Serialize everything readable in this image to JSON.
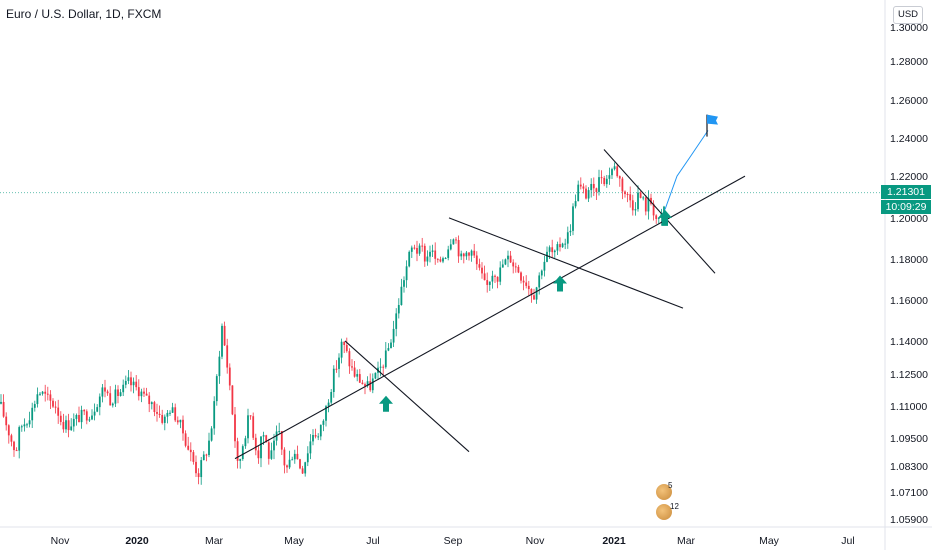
{
  "header": {
    "title": "Euro / U.S. Dollar, 1D, FXCM",
    "currency": "USD"
  },
  "price_tags": {
    "last_price": "1.21301",
    "countdown": "10:09:29"
  },
  "events": {
    "badge_top": "5",
    "badge_bottom": "12"
  },
  "colors": {
    "up": "#089981",
    "down": "#f23645",
    "projection": "#2196f3",
    "flag": "#2196f3",
    "lines": "#131722",
    "price_line": "#089981"
  },
  "chart_data": {
    "type": "candlestick",
    "symbol": "EURUSD",
    "timeframe": "1D",
    "x_axis_labels": [
      "Nov",
      "2020",
      "Mar",
      "May",
      "Jul",
      "Sep",
      "Nov",
      "2021",
      "Mar",
      "May",
      "Jul"
    ],
    "y_axis_labels": [
      "1.30000",
      "1.28000",
      "1.26000",
      "1.24000",
      "1.22000",
      "1.20000",
      "1.18000",
      "1.16000",
      "1.14000",
      "1.12500",
      "1.11000",
      "1.09500",
      "1.08300",
      "1.07100",
      "1.05900"
    ],
    "y_range": [
      1.059,
      1.3
    ],
    "last_price": 1.21301,
    "price_path": [
      [
        0,
        1.112
      ],
      [
        6,
        1.103
      ],
      [
        12,
        1.094
      ],
      [
        16,
        1.09
      ],
      [
        20,
        1.101
      ],
      [
        26,
        1.104
      ],
      [
        32,
        1.109
      ],
      [
        38,
        1.118
      ],
      [
        44,
        1.116
      ],
      [
        50,
        1.113
      ],
      [
        56,
        1.111
      ],
      [
        62,
        1.103
      ],
      [
        68,
        1.102
      ],
      [
        74,
        1.104
      ],
      [
        80,
        1.106
      ],
      [
        86,
        1.107
      ],
      [
        92,
        1.108
      ],
      [
        98,
        1.114
      ],
      [
        104,
        1.12
      ],
      [
        110,
        1.114
      ],
      [
        116,
        1.116
      ],
      [
        122,
        1.118
      ],
      [
        128,
        1.122
      ],
      [
        134,
        1.12
      ],
      [
        140,
        1.118
      ],
      [
        146,
        1.114
      ],
      [
        152,
        1.112
      ],
      [
        158,
        1.108
      ],
      [
        164,
        1.104
      ],
      [
        170,
        1.11
      ],
      [
        176,
        1.106
      ],
      [
        182,
        1.1
      ],
      [
        188,
        1.092
      ],
      [
        194,
        1.085
      ],
      [
        198,
        1.08
      ],
      [
        202,
        1.085
      ],
      [
        206,
        1.09
      ],
      [
        210,
        1.096
      ],
      [
        214,
        1.11
      ],
      [
        218,
        1.13
      ],
      [
        222,
        1.148
      ],
      [
        226,
        1.134
      ],
      [
        230,
        1.12
      ],
      [
        234,
        1.1
      ],
      [
        238,
        1.082
      ],
      [
        242,
        1.092
      ],
      [
        246,
        1.1
      ],
      [
        250,
        1.108
      ],
      [
        254,
        1.096
      ],
      [
        258,
        1.088
      ],
      [
        262,
        1.1
      ],
      [
        266,
        1.094
      ],
      [
        270,
        1.086
      ],
      [
        274,
        1.092
      ],
      [
        278,
        1.1
      ],
      [
        282,
        1.09
      ],
      [
        286,
        1.082
      ],
      [
        290,
        1.086
      ],
      [
        294,
        1.092
      ],
      [
        298,
        1.086
      ],
      [
        302,
        1.082
      ],
      [
        306,
        1.088
      ],
      [
        310,
        1.094
      ],
      [
        314,
        1.1
      ],
      [
        318,
        1.096
      ],
      [
        322,
        1.102
      ],
      [
        326,
        1.11
      ],
      [
        330,
        1.118
      ],
      [
        334,
        1.126
      ],
      [
        338,
        1.132
      ],
      [
        342,
        1.14
      ],
      [
        346,
        1.136
      ],
      [
        350,
        1.13
      ],
      [
        354,
        1.126
      ],
      [
        358,
        1.124
      ],
      [
        362,
        1.122
      ],
      [
        366,
        1.12
      ],
      [
        370,
        1.12
      ],
      [
        374,
        1.124
      ],
      [
        378,
        1.126
      ],
      [
        382,
        1.13
      ],
      [
        386,
        1.134
      ],
      [
        390,
        1.14
      ],
      [
        394,
        1.148
      ],
      [
        398,
        1.158
      ],
      [
        402,
        1.168
      ],
      [
        406,
        1.176
      ],
      [
        410,
        1.184
      ],
      [
        414,
        1.188
      ],
      [
        418,
        1.184
      ],
      [
        422,
        1.186
      ],
      [
        426,
        1.18
      ],
      [
        430,
        1.186
      ],
      [
        434,
        1.182
      ],
      [
        438,
        1.178
      ],
      [
        442,
        1.182
      ],
      [
        446,
        1.184
      ],
      [
        450,
        1.19
      ],
      [
        454,
        1.194
      ],
      [
        458,
        1.186
      ],
      [
        462,
        1.18
      ],
      [
        466,
        1.184
      ],
      [
        470,
        1.186
      ],
      [
        474,
        1.182
      ],
      [
        478,
        1.176
      ],
      [
        482,
        1.172
      ],
      [
        486,
        1.166
      ],
      [
        490,
        1.172
      ],
      [
        494,
        1.176
      ],
      [
        498,
        1.172
      ],
      [
        502,
        1.178
      ],
      [
        506,
        1.18
      ],
      [
        510,
        1.182
      ],
      [
        514,
        1.178
      ],
      [
        518,
        1.176
      ],
      [
        522,
        1.172
      ],
      [
        526,
        1.17
      ],
      [
        530,
        1.166
      ],
      [
        534,
        1.164
      ],
      [
        538,
        1.17
      ],
      [
        542,
        1.178
      ],
      [
        546,
        1.182
      ],
      [
        550,
        1.186
      ],
      [
        554,
        1.182
      ],
      [
        558,
        1.186
      ],
      [
        562,
        1.19
      ],
      [
        566,
        1.19
      ],
      [
        570,
        1.196
      ],
      [
        574,
        1.208
      ],
      [
        578,
        1.216
      ],
      [
        582,
        1.214
      ],
      [
        586,
        1.212
      ],
      [
        590,
        1.216
      ],
      [
        594,
        1.212
      ],
      [
        598,
        1.218
      ],
      [
        602,
        1.222
      ],
      [
        606,
        1.218
      ],
      [
        610,
        1.224
      ],
      [
        614,
        1.226
      ],
      [
        618,
        1.222
      ],
      [
        622,
        1.216
      ],
      [
        626,
        1.212
      ],
      [
        630,
        1.21
      ],
      [
        634,
        1.206
      ],
      [
        638,
        1.212
      ],
      [
        642,
        1.21
      ],
      [
        646,
        1.206
      ],
      [
        650,
        1.21
      ],
      [
        654,
        1.204
      ],
      [
        658,
        1.198
      ],
      [
        662,
        1.202
      ],
      [
        666,
        1.21
      ]
    ],
    "annotations": {
      "trendline_support": {
        "from": [
          235,
          1.087
        ],
        "to": [
          745,
          1.221
        ]
      },
      "trendline_resistance_jul": {
        "from": [
          345,
          1.141
        ],
        "to": [
          469,
          1.09
        ]
      },
      "trendline_resistance_sep": {
        "from": [
          449,
          1.201
        ],
        "to": [
          683,
          1.157
        ]
      },
      "trendline_resistance_2021": {
        "from": [
          604,
          1.235
        ],
        "to": [
          715,
          1.174
        ]
      },
      "up_arrows": [
        [
          386,
          1.112
        ],
        [
          560,
          1.169
        ],
        [
          665,
          1.201
        ]
      ],
      "projection_path": [
        [
          665,
          1.205
        ],
        [
          677,
          1.221
        ],
        [
          690,
          1.231
        ],
        [
          708,
          1.245
        ]
      ],
      "flag_target": [
        707,
        1.246
      ]
    }
  }
}
